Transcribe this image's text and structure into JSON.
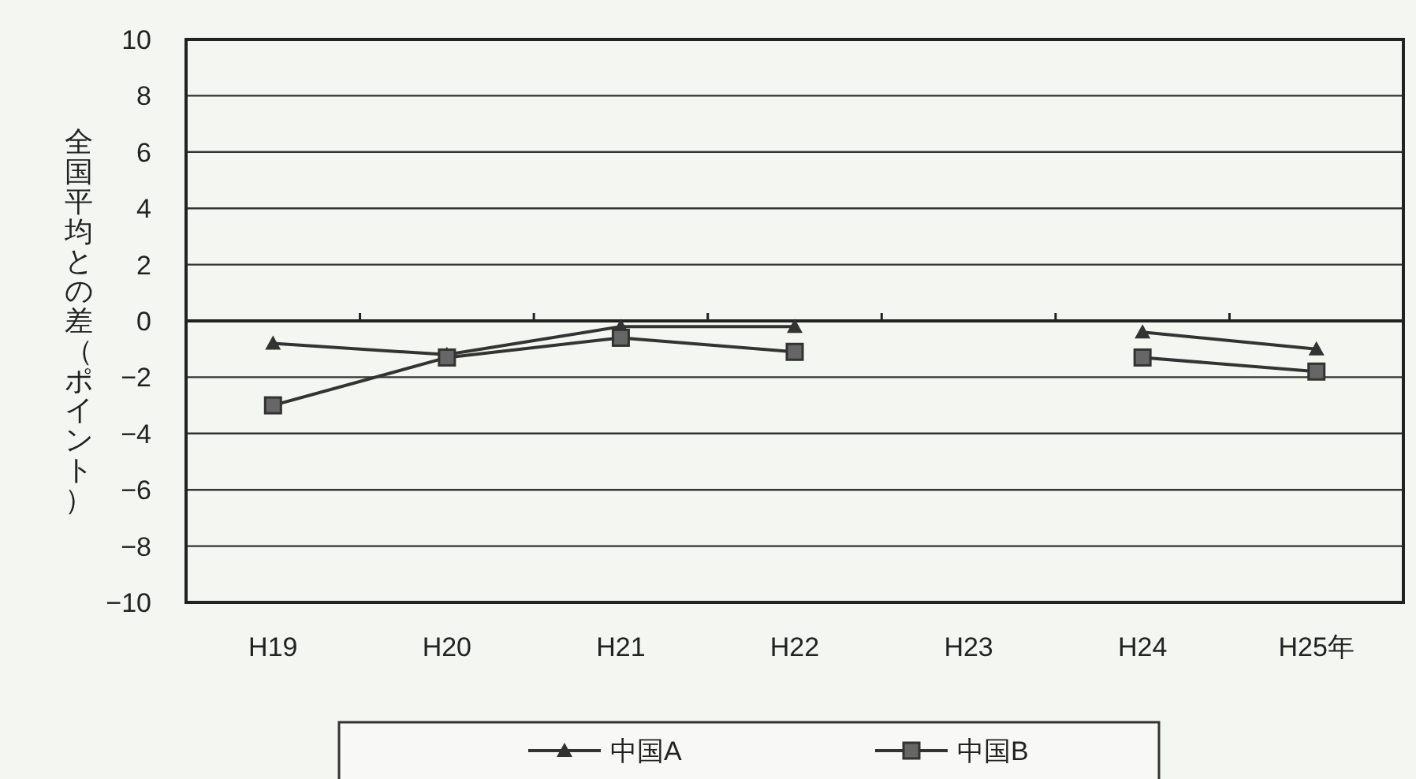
{
  "chart_data": {
    "type": "line",
    "ylabel": "全国平均との差（ポイント）",
    "categories": [
      "H19",
      "H20",
      "H21",
      "H22",
      "H23",
      "H24",
      "H25年"
    ],
    "series": [
      {
        "name": "中国A",
        "color": "#333333",
        "marker": "triangle",
        "values": [
          -0.8,
          -1.2,
          -0.2,
          -0.2,
          null,
          -0.4,
          -1.0
        ]
      },
      {
        "name": "中国B",
        "color": "#333333",
        "marker": "square",
        "values": [
          -3.0,
          -1.3,
          -0.6,
          -1.1,
          null,
          -1.3,
          -1.8
        ]
      }
    ],
    "ylim": [
      -10,
      10
    ],
    "yticks": [
      -10,
      -8,
      -6,
      -4,
      -2,
      0,
      2,
      4,
      6,
      8,
      10
    ],
    "grid": "y",
    "legend": "bottom",
    "line_style": "solid"
  }
}
